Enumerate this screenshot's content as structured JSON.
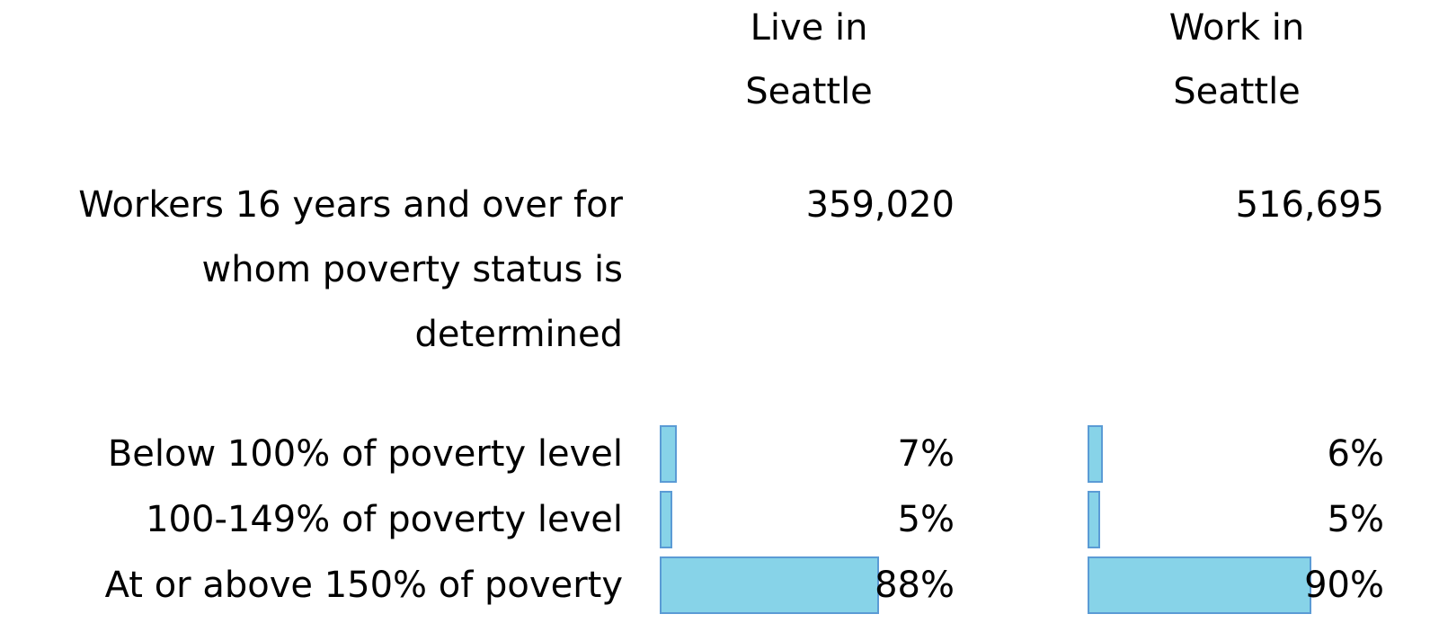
{
  "table": {
    "columns": [
      "Live in Seattle",
      "Work in Seattle"
    ],
    "rows": [
      {
        "label": "Workers 16 years and over for whom poverty status is determined",
        "cells": [
          "359,020",
          "516,695"
        ]
      },
      {
        "label": "Below 100% of poverty level",
        "values": [
          7,
          6
        ],
        "value_labels": [
          "7%",
          "6%"
        ]
      },
      {
        "label": "100-149% of poverty level",
        "values": [
          5,
          5
        ],
        "value_labels": [
          "5%",
          "5%"
        ]
      },
      {
        "label": "At or above 150% of poverty",
        "values": [
          88,
          90
        ],
        "value_labels": [
          "88%",
          "90%"
        ]
      }
    ]
  }
}
